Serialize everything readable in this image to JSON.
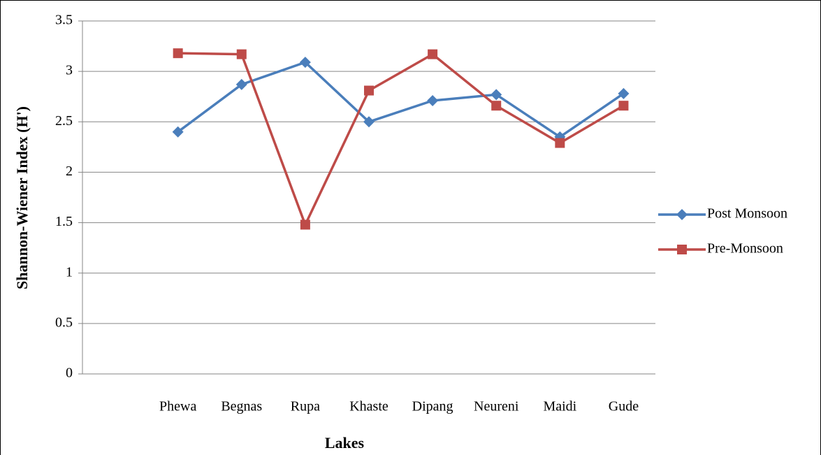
{
  "chart_data": {
    "type": "line",
    "x_label": "Lakes",
    "y_label": "Shannon-Wiener Index (H')",
    "categories": [
      null,
      "Phewa",
      "Begnas",
      "Rupa",
      "Khaste",
      "Dipang",
      "Neureni",
      "Maidi",
      "Gude"
    ],
    "series": [
      {
        "name": "Post Monsoon",
        "color": "#4a7ebb",
        "marker": "diamond",
        "values": [
          null,
          2.4,
          2.87,
          3.09,
          2.5,
          2.71,
          2.77,
          2.35,
          2.78
        ]
      },
      {
        "name": "Pre-Monsoon",
        "color": "#be4b48",
        "marker": "square",
        "values": [
          null,
          3.18,
          3.17,
          1.48,
          2.81,
          3.17,
          2.66,
          2.29,
          2.66
        ]
      }
    ],
    "ylim": [
      0,
      3.5
    ],
    "yticks": [
      0,
      0.5,
      1,
      1.5,
      2,
      2.5,
      3,
      3.5
    ],
    "grid": true,
    "legend": "right"
  }
}
